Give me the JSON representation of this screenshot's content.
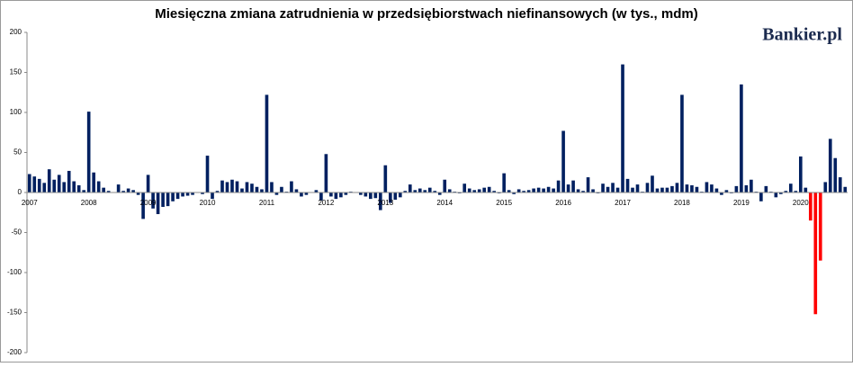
{
  "chart_data": {
    "type": "bar",
    "title": "Miesięczna zmiana zatrudnienia w przedsiębiorstwach niefinansowych (w tys., mdm)",
    "logo": "Bankier.pl",
    "categories": [
      "2007",
      null,
      null,
      null,
      null,
      null,
      null,
      null,
      null,
      null,
      null,
      null,
      "2008",
      null,
      null,
      null,
      null,
      null,
      null,
      null,
      null,
      null,
      null,
      null,
      "2009",
      null,
      null,
      null,
      null,
      null,
      null,
      null,
      null,
      null,
      null,
      null,
      "2010",
      null,
      null,
      null,
      null,
      null,
      null,
      null,
      null,
      null,
      null,
      null,
      "2011",
      null,
      null,
      null,
      null,
      null,
      null,
      null,
      null,
      null,
      null,
      null,
      "2012",
      null,
      null,
      null,
      null,
      null,
      null,
      null,
      null,
      null,
      null,
      null,
      "2013",
      null,
      null,
      null,
      null,
      null,
      null,
      null,
      null,
      null,
      null,
      null,
      "2014",
      null,
      null,
      null,
      null,
      null,
      null,
      null,
      null,
      null,
      null,
      null,
      "2015",
      null,
      null,
      null,
      null,
      null,
      null,
      null,
      null,
      null,
      null,
      null,
      "2016",
      null,
      null,
      null,
      null,
      null,
      null,
      null,
      null,
      null,
      null,
      null,
      "2017",
      null,
      null,
      null,
      null,
      null,
      null,
      null,
      null,
      null,
      null,
      null,
      "2018",
      null,
      null,
      null,
      null,
      null,
      null,
      null,
      null,
      null,
      null,
      null,
      "2019",
      null,
      null,
      null,
      null,
      null,
      null,
      null,
      null,
      null,
      null,
      null,
      "2020",
      null,
      null,
      null,
      null,
      null,
      null,
      null,
      null,
      null
    ],
    "series": [
      {
        "color": "#002060",
        "values": [
          23,
          20,
          17,
          12,
          29,
          16,
          22,
          13,
          27,
          14,
          9,
          3,
          101,
          25,
          14,
          6,
          2,
          0,
          10,
          2,
          5,
          3,
          -3,
          -33,
          22,
          -20,
          -27,
          -18,
          -17,
          -11,
          -8,
          -5,
          -4,
          -3,
          0,
          -2,
          46,
          -8,
          2,
          15,
          13,
          16,
          14,
          5,
          13,
          11,
          7,
          4,
          122,
          13,
          -3,
          7,
          1,
          14,
          4,
          -5,
          -3,
          0,
          3,
          -10,
          48,
          -5,
          -8,
          -6,
          -3,
          1,
          0,
          -3,
          -5,
          -8,
          -7,
          -22,
          34,
          -13,
          -9,
          -6,
          2,
          10,
          3,
          5,
          3,
          6,
          2,
          -3,
          16,
          4,
          1,
          -1,
          11,
          5,
          3,
          4,
          6,
          7,
          2,
          -1,
          24,
          3,
          -2,
          4,
          2,
          3,
          5,
          6,
          5,
          7,
          5,
          15,
          77,
          10,
          15,
          4,
          2,
          19,
          4,
          -1,
          11,
          7,
          12,
          6,
          160,
          17,
          6,
          10,
          1,
          12,
          21,
          5,
          6,
          6,
          8,
          12,
          122,
          10,
          9,
          7,
          1,
          13,
          10,
          5,
          -3,
          3,
          -1,
          8,
          135,
          9,
          16,
          1,
          -11,
          8,
          1,
          -6,
          -2,
          2,
          11,
          2,
          45,
          6,
          null,
          null,
          null,
          13,
          67,
          43,
          19,
          7
        ]
      },
      {
        "color": "#ff0000",
        "values": [
          null,
          null,
          null,
          null,
          null,
          null,
          null,
          null,
          null,
          null,
          null,
          null,
          null,
          null,
          null,
          null,
          null,
          null,
          null,
          null,
          null,
          null,
          null,
          null,
          null,
          null,
          null,
          null,
          null,
          null,
          null,
          null,
          null,
          null,
          null,
          null,
          null,
          null,
          null,
          null,
          null,
          null,
          null,
          null,
          null,
          null,
          null,
          null,
          null,
          null,
          null,
          null,
          null,
          null,
          null,
          null,
          null,
          null,
          null,
          null,
          null,
          null,
          null,
          null,
          null,
          null,
          null,
          null,
          null,
          null,
          null,
          null,
          null,
          null,
          null,
          null,
          null,
          null,
          null,
          null,
          null,
          null,
          null,
          null,
          null,
          null,
          null,
          null,
          null,
          null,
          null,
          null,
          null,
          null,
          null,
          null,
          null,
          null,
          null,
          null,
          null,
          null,
          null,
          null,
          null,
          null,
          null,
          null,
          null,
          null,
          null,
          null,
          null,
          null,
          null,
          null,
          null,
          null,
          null,
          null,
          null,
          null,
          null,
          null,
          null,
          null,
          null,
          null,
          null,
          null,
          null,
          null,
          null,
          null,
          null,
          null,
          null,
          null,
          null,
          null,
          null,
          null,
          null,
          null,
          null,
          null,
          null,
          null,
          null,
          null,
          null,
          null,
          null,
          null,
          null,
          null,
          null,
          null,
          -35,
          -152,
          -85,
          null,
          null,
          null,
          null,
          null
        ]
      }
    ],
    "ylim": [
      -200,
      200
    ],
    "yticks": [
      -200,
      -150,
      -100,
      -50,
      0,
      50,
      100,
      150,
      200
    ],
    "grid": false
  }
}
